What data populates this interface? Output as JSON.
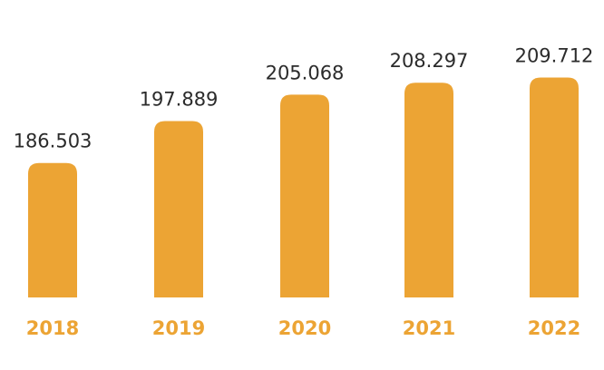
{
  "chart_data": {
    "type": "bar",
    "title": "",
    "xlabel": "",
    "ylabel": "",
    "categories": [
      "2018",
      "2019",
      "2020",
      "2021",
      "2022"
    ],
    "values": [
      186.503,
      197.889,
      205.068,
      208.297,
      209.712
    ],
    "value_labels": [
      "186.503",
      "197.889",
      "205.068",
      "208.297",
      "209.712"
    ],
    "ylim": [
      150,
      215
    ],
    "grid": false,
    "legend": "none",
    "colors": {
      "bar": "#eca434",
      "tick_label": "#eca434",
      "value_label": "#2b2b2b"
    }
  }
}
